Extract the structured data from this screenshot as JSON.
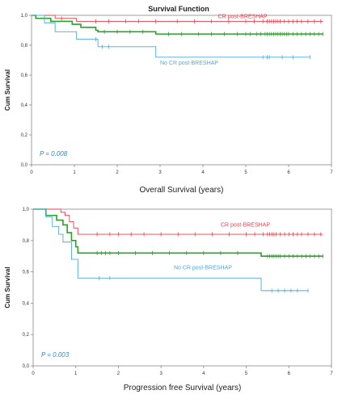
{
  "figure": {
    "title": "Survival Function"
  },
  "chart_data": [
    {
      "type": "line",
      "step": true,
      "xlabel": "Overall Survival (years)",
      "ylabel": "Cum Survival",
      "xlim": [
        0,
        7
      ],
      "ylim": [
        0,
        1.0
      ],
      "xticks": [
        0,
        1,
        2,
        3,
        4,
        5,
        6,
        7
      ],
      "xtick_labels": [
        "0",
        "1",
        "2",
        "3",
        "4",
        "5",
        "6",
        "7"
      ],
      "yticks": [
        0,
        0.2,
        0.4,
        0.6,
        0.8,
        1.0
      ],
      "ytick_labels": [
        "0,0",
        "0,2",
        "0,4",
        "0,6",
        "0,8",
        "1,0"
      ],
      "annotation": "P = 0.008",
      "series": [
        {
          "name": "CR post-BRESHAP",
          "color": "#e8414f",
          "label_at": [
            4.35,
            0.98
          ],
          "steps": [
            [
              0,
              1.0
            ],
            [
              0.55,
              0.98
            ],
            [
              1.05,
              0.96
            ],
            [
              6.8,
              0.96
            ]
          ],
          "censored": [
            0.7,
            1.5,
            1.8,
            2.2,
            2.5,
            2.9,
            3.4,
            3.8,
            4.2,
            4.6,
            5.0,
            5.2,
            5.4,
            5.5,
            5.55,
            5.6,
            5.65,
            5.7,
            5.75,
            5.8,
            5.9,
            6.0,
            6.1,
            6.2,
            6.3,
            6.45,
            6.6,
            6.75
          ]
        },
        {
          "name": "",
          "color": "#2ca02c",
          "steps": [
            [
              0,
              1.0
            ],
            [
              0.1,
              0.98
            ],
            [
              0.45,
              0.96
            ],
            [
              0.95,
              0.94
            ],
            [
              1.15,
              0.92
            ],
            [
              1.5,
              0.9
            ],
            [
              1.55,
              0.89
            ],
            [
              2.9,
              0.875
            ],
            [
              6.8,
              0.875
            ]
          ],
          "censored": [
            1.7,
            2.0,
            2.3,
            2.6,
            3.2,
            3.5,
            3.9,
            4.2,
            4.5,
            4.8,
            5.0,
            5.1,
            5.25,
            5.35,
            5.45,
            5.5,
            5.55,
            5.6,
            5.65,
            5.7,
            5.75,
            5.8,
            5.85,
            5.9,
            5.95,
            6.0,
            6.1,
            6.2,
            6.3,
            6.4,
            6.5,
            6.6,
            6.7,
            6.8
          ]
        },
        {
          "name": "No CR post-BRESHAP",
          "color": "#4fa8dc",
          "label_at": [
            3.0,
            0.67
          ],
          "steps": [
            [
              0,
              1.0
            ],
            [
              0.3,
              0.95
            ],
            [
              0.55,
              0.89
            ],
            [
              1.05,
              0.84
            ],
            [
              1.55,
              0.79
            ],
            [
              2.9,
              0.72
            ],
            [
              6.5,
              0.72
            ]
          ],
          "censored": [
            1.5,
            1.65,
            1.8,
            5.4,
            5.5,
            5.55,
            5.85,
            6.1,
            6.5
          ]
        }
      ]
    },
    {
      "type": "line",
      "step": true,
      "xlabel": "Progression free Survival (years)",
      "ylabel": "Cum Survival",
      "xlim": [
        0,
        7
      ],
      "ylim": [
        0,
        1.0
      ],
      "xticks": [
        0,
        1,
        2,
        3,
        4,
        5,
        6,
        7
      ],
      "xtick_labels": [
        "0",
        "1",
        "2",
        "3",
        "4",
        "5",
        "6",
        "7"
      ],
      "yticks": [
        0,
        0.2,
        0.4,
        0.6,
        0.8,
        1.0
      ],
      "ytick_labels": [
        "0,0",
        "0,2",
        "0,4",
        "0,6",
        "0,8",
        "1,0"
      ],
      "annotation": "P = 0.003",
      "series": [
        {
          "name": "CR post-BRESHAP",
          "color": "#e8414f",
          "label_at": [
            4.4,
            0.89
          ],
          "steps": [
            [
              0,
              1.0
            ],
            [
              0.65,
              0.98
            ],
            [
              0.75,
              0.96
            ],
            [
              0.85,
              0.92
            ],
            [
              0.95,
              0.88
            ],
            [
              1.05,
              0.84
            ],
            [
              6.8,
              0.84
            ]
          ],
          "censored": [
            1.5,
            1.8,
            2.0,
            2.3,
            2.6,
            3.0,
            3.4,
            3.8,
            4.2,
            4.6,
            5.0,
            5.2,
            5.4,
            5.5,
            5.55,
            5.6,
            5.65,
            5.7,
            5.8,
            5.9,
            6.0,
            6.1,
            6.2,
            6.3,
            6.45,
            6.6,
            6.75
          ]
        },
        {
          "name": "",
          "color": "#2ca02c",
          "steps": [
            [
              0,
              1.0
            ],
            [
              0.3,
              0.96
            ],
            [
              0.55,
              0.93
            ],
            [
              0.7,
              0.9
            ],
            [
              0.8,
              0.85
            ],
            [
              0.9,
              0.8
            ],
            [
              1.0,
              0.76
            ],
            [
              1.05,
              0.72
            ],
            [
              5.3,
              0.72
            ],
            [
              5.35,
              0.7
            ],
            [
              6.8,
              0.7
            ]
          ],
          "censored": [
            1.5,
            1.6,
            1.7,
            1.8,
            2.0,
            2.4,
            2.8,
            3.2,
            3.6,
            4.0,
            4.4,
            4.8,
            5.5,
            5.55,
            5.6,
            5.65,
            5.7,
            5.75,
            5.8,
            5.9,
            6.0,
            6.1,
            6.2,
            6.3,
            6.4,
            6.5,
            6.6,
            6.7,
            6.8
          ]
        },
        {
          "name": "No CR post-BRESHAP",
          "color": "#4fa8dc",
          "label_at": [
            3.3,
            0.615
          ],
          "steps": [
            [
              0,
              1.0
            ],
            [
              0.3,
              0.95
            ],
            [
              0.45,
              0.89
            ],
            [
              0.6,
              0.84
            ],
            [
              0.7,
              0.79
            ],
            [
              0.9,
              0.68
            ],
            [
              1.05,
              0.56
            ],
            [
              5.3,
              0.56
            ],
            [
              5.35,
              0.48
            ],
            [
              6.45,
              0.48
            ]
          ],
          "censored": [
            1.55,
            1.8,
            5.6,
            5.75,
            5.9,
            6.05,
            6.2,
            6.45
          ]
        }
      ]
    }
  ]
}
